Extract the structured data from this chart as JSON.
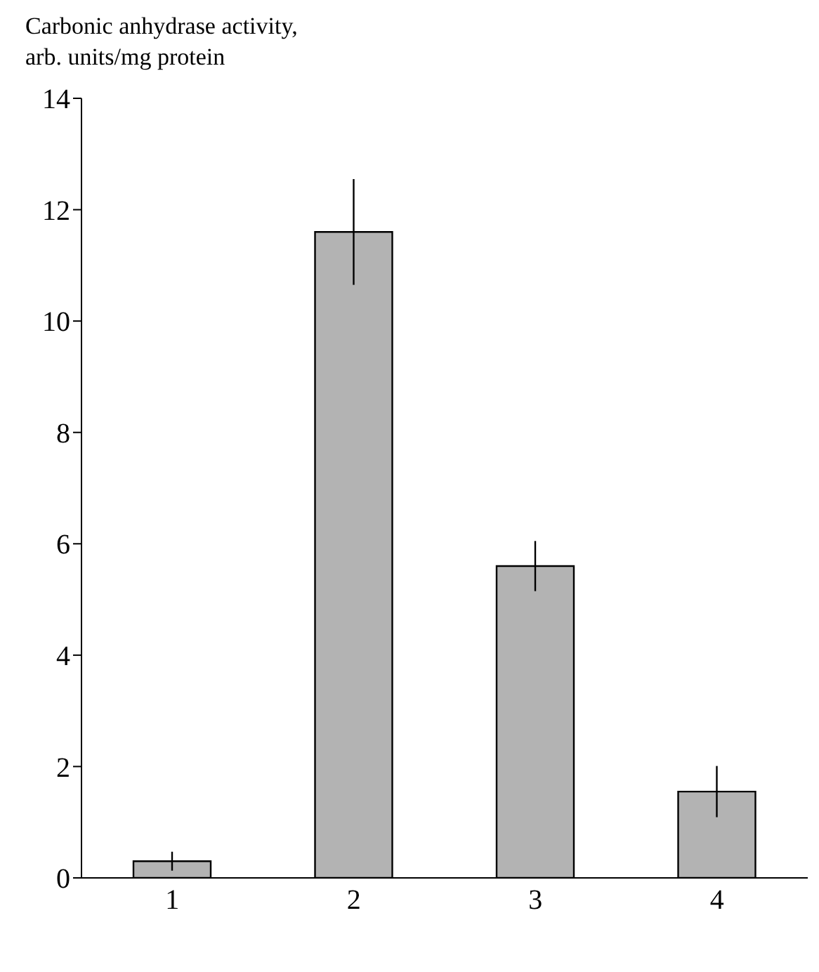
{
  "chart_data": {
    "type": "bar",
    "ylabel": "Carbonic anhydrase activity,\narb. units/mg protein",
    "categories": [
      "1",
      "2",
      "3",
      "4"
    ],
    "values": [
      0.3,
      11.6,
      5.6,
      1.55
    ],
    "errors": [
      0.17,
      0.95,
      0.45,
      0.46
    ],
    "color": "#b3b3b3",
    "ylim": [
      0,
      14
    ],
    "yticks": [
      0,
      2,
      4,
      6,
      8,
      10,
      12,
      14
    ],
    "grid": false,
    "legend": false
  }
}
